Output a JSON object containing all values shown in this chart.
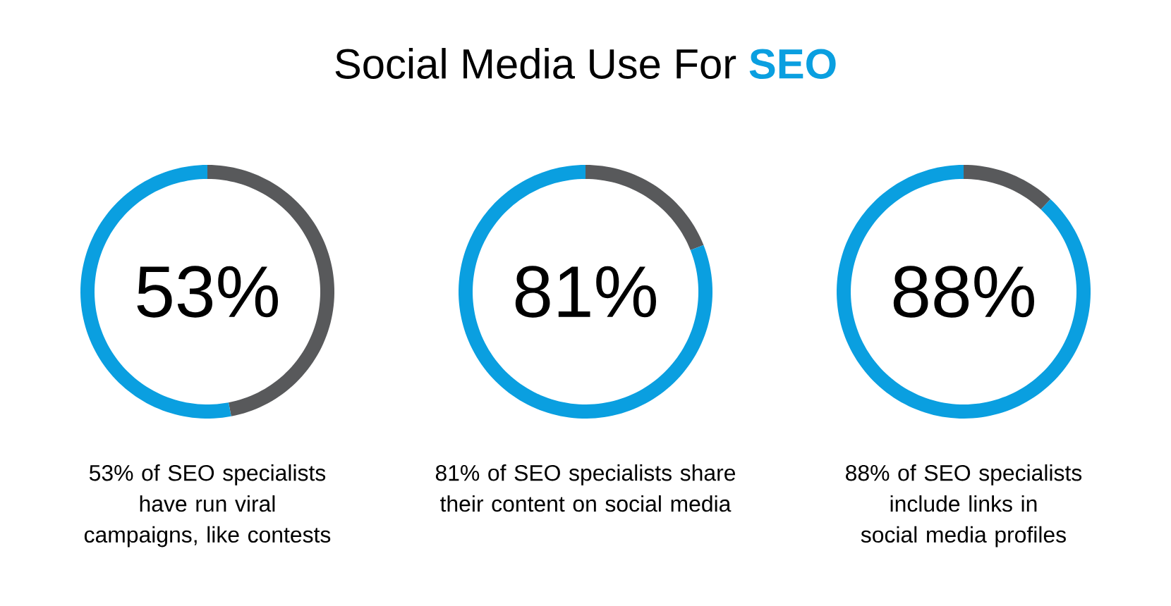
{
  "chart_data": [
    {
      "type": "donut",
      "categories": [
        null,
        null
      ],
      "values": [
        47,
        53
      ],
      "colors": [
        "#58595b",
        "#0a9fe0"
      ],
      "annotations": [
        "53%",
        "53% of SEO specialists have run viral campaigns, like contests"
      ]
    },
    {
      "type": "donut",
      "title": "Social Media Use For **SEO**",
      "categories": [
        null,
        null
      ],
      "values": [
        19,
        81
      ],
      "colors": [
        "#58595b",
        "#0a9fe0"
      ],
      "annotations": [
        "81%",
        "81% of SEO specialists share their content on social media"
      ]
    },
    {
      "type": "donut",
      "categories": [
        null,
        null
      ],
      "values": [
        12,
        88
      ],
      "colors": [
        "#58595b",
        "#0a9fe0"
      ],
      "annotations": [
        "88%",
        "88% of SEO specialists include links in social media profiles"
      ]
    }
  ]
}
